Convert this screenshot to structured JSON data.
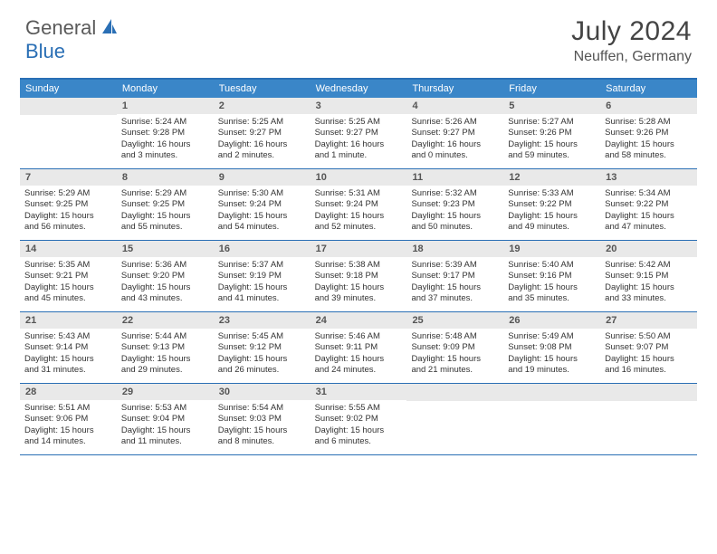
{
  "logo": {
    "general": "General",
    "blue": "Blue"
  },
  "title": "July 2024",
  "location": "Neuffen, Germany",
  "colors": {
    "header_bar": "#3a86c8",
    "border": "#2a6fb5",
    "daynum_bg": "#e9e9e9",
    "text": "#333333"
  },
  "weekdays": [
    "Sunday",
    "Monday",
    "Tuesday",
    "Wednesday",
    "Thursday",
    "Friday",
    "Saturday"
  ],
  "weeks": [
    [
      null,
      {
        "n": "1",
        "sr": "Sunrise: 5:24 AM",
        "ss": "Sunset: 9:28 PM",
        "d1": "Daylight: 16 hours",
        "d2": "and 3 minutes."
      },
      {
        "n": "2",
        "sr": "Sunrise: 5:25 AM",
        "ss": "Sunset: 9:27 PM",
        "d1": "Daylight: 16 hours",
        "d2": "and 2 minutes."
      },
      {
        "n": "3",
        "sr": "Sunrise: 5:25 AM",
        "ss": "Sunset: 9:27 PM",
        "d1": "Daylight: 16 hours",
        "d2": "and 1 minute."
      },
      {
        "n": "4",
        "sr": "Sunrise: 5:26 AM",
        "ss": "Sunset: 9:27 PM",
        "d1": "Daylight: 16 hours",
        "d2": "and 0 minutes."
      },
      {
        "n": "5",
        "sr": "Sunrise: 5:27 AM",
        "ss": "Sunset: 9:26 PM",
        "d1": "Daylight: 15 hours",
        "d2": "and 59 minutes."
      },
      {
        "n": "6",
        "sr": "Sunrise: 5:28 AM",
        "ss": "Sunset: 9:26 PM",
        "d1": "Daylight: 15 hours",
        "d2": "and 58 minutes."
      }
    ],
    [
      {
        "n": "7",
        "sr": "Sunrise: 5:29 AM",
        "ss": "Sunset: 9:25 PM",
        "d1": "Daylight: 15 hours",
        "d2": "and 56 minutes."
      },
      {
        "n": "8",
        "sr": "Sunrise: 5:29 AM",
        "ss": "Sunset: 9:25 PM",
        "d1": "Daylight: 15 hours",
        "d2": "and 55 minutes."
      },
      {
        "n": "9",
        "sr": "Sunrise: 5:30 AM",
        "ss": "Sunset: 9:24 PM",
        "d1": "Daylight: 15 hours",
        "d2": "and 54 minutes."
      },
      {
        "n": "10",
        "sr": "Sunrise: 5:31 AM",
        "ss": "Sunset: 9:24 PM",
        "d1": "Daylight: 15 hours",
        "d2": "and 52 minutes."
      },
      {
        "n": "11",
        "sr": "Sunrise: 5:32 AM",
        "ss": "Sunset: 9:23 PM",
        "d1": "Daylight: 15 hours",
        "d2": "and 50 minutes."
      },
      {
        "n": "12",
        "sr": "Sunrise: 5:33 AM",
        "ss": "Sunset: 9:22 PM",
        "d1": "Daylight: 15 hours",
        "d2": "and 49 minutes."
      },
      {
        "n": "13",
        "sr": "Sunrise: 5:34 AM",
        "ss": "Sunset: 9:22 PM",
        "d1": "Daylight: 15 hours",
        "d2": "and 47 minutes."
      }
    ],
    [
      {
        "n": "14",
        "sr": "Sunrise: 5:35 AM",
        "ss": "Sunset: 9:21 PM",
        "d1": "Daylight: 15 hours",
        "d2": "and 45 minutes."
      },
      {
        "n": "15",
        "sr": "Sunrise: 5:36 AM",
        "ss": "Sunset: 9:20 PM",
        "d1": "Daylight: 15 hours",
        "d2": "and 43 minutes."
      },
      {
        "n": "16",
        "sr": "Sunrise: 5:37 AM",
        "ss": "Sunset: 9:19 PM",
        "d1": "Daylight: 15 hours",
        "d2": "and 41 minutes."
      },
      {
        "n": "17",
        "sr": "Sunrise: 5:38 AM",
        "ss": "Sunset: 9:18 PM",
        "d1": "Daylight: 15 hours",
        "d2": "and 39 minutes."
      },
      {
        "n": "18",
        "sr": "Sunrise: 5:39 AM",
        "ss": "Sunset: 9:17 PM",
        "d1": "Daylight: 15 hours",
        "d2": "and 37 minutes."
      },
      {
        "n": "19",
        "sr": "Sunrise: 5:40 AM",
        "ss": "Sunset: 9:16 PM",
        "d1": "Daylight: 15 hours",
        "d2": "and 35 minutes."
      },
      {
        "n": "20",
        "sr": "Sunrise: 5:42 AM",
        "ss": "Sunset: 9:15 PM",
        "d1": "Daylight: 15 hours",
        "d2": "and 33 minutes."
      }
    ],
    [
      {
        "n": "21",
        "sr": "Sunrise: 5:43 AM",
        "ss": "Sunset: 9:14 PM",
        "d1": "Daylight: 15 hours",
        "d2": "and 31 minutes."
      },
      {
        "n": "22",
        "sr": "Sunrise: 5:44 AM",
        "ss": "Sunset: 9:13 PM",
        "d1": "Daylight: 15 hours",
        "d2": "and 29 minutes."
      },
      {
        "n": "23",
        "sr": "Sunrise: 5:45 AM",
        "ss": "Sunset: 9:12 PM",
        "d1": "Daylight: 15 hours",
        "d2": "and 26 minutes."
      },
      {
        "n": "24",
        "sr": "Sunrise: 5:46 AM",
        "ss": "Sunset: 9:11 PM",
        "d1": "Daylight: 15 hours",
        "d2": "and 24 minutes."
      },
      {
        "n": "25",
        "sr": "Sunrise: 5:48 AM",
        "ss": "Sunset: 9:09 PM",
        "d1": "Daylight: 15 hours",
        "d2": "and 21 minutes."
      },
      {
        "n": "26",
        "sr": "Sunrise: 5:49 AM",
        "ss": "Sunset: 9:08 PM",
        "d1": "Daylight: 15 hours",
        "d2": "and 19 minutes."
      },
      {
        "n": "27",
        "sr": "Sunrise: 5:50 AM",
        "ss": "Sunset: 9:07 PM",
        "d1": "Daylight: 15 hours",
        "d2": "and 16 minutes."
      }
    ],
    [
      {
        "n": "28",
        "sr": "Sunrise: 5:51 AM",
        "ss": "Sunset: 9:06 PM",
        "d1": "Daylight: 15 hours",
        "d2": "and 14 minutes."
      },
      {
        "n": "29",
        "sr": "Sunrise: 5:53 AM",
        "ss": "Sunset: 9:04 PM",
        "d1": "Daylight: 15 hours",
        "d2": "and 11 minutes."
      },
      {
        "n": "30",
        "sr": "Sunrise: 5:54 AM",
        "ss": "Sunset: 9:03 PM",
        "d1": "Daylight: 15 hours",
        "d2": "and 8 minutes."
      },
      {
        "n": "31",
        "sr": "Sunrise: 5:55 AM",
        "ss": "Sunset: 9:02 PM",
        "d1": "Daylight: 15 hours",
        "d2": "and 6 minutes."
      },
      null,
      null,
      null
    ]
  ]
}
